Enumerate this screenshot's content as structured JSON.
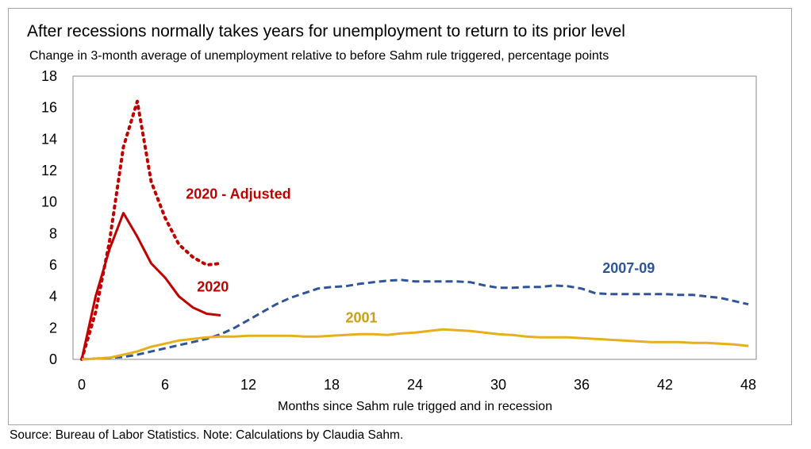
{
  "title": "After recessions normally takes years for unemployment to return to its prior level",
  "subtitle": "Change in 3-month average of unemployment relative to before Sahm rule triggered, percentage points",
  "source": "Source: Bureau of Labor Statistics. Note: Calculations by Claudia Sahm.",
  "chart_data": {
    "type": "line",
    "title": "After recessions normally takes years for unemployment to return to its prior level",
    "subtitle": "Change in 3-month average of unemployment relative to before Sahm rule triggered, percentage points",
    "xlabel": "Months since Sahm rule trigged and in recession",
    "ylabel": "",
    "xlim": [
      0,
      48
    ],
    "ylim": [
      0,
      18
    ],
    "xticks": [
      0,
      6,
      12,
      18,
      24,
      30,
      36,
      42,
      48
    ],
    "yticks": [
      0,
      2,
      4,
      6,
      8,
      10,
      12,
      14,
      16,
      18
    ],
    "grid": false,
    "legend": "none (direct labels)",
    "series": [
      {
        "name": "2020 - Adjusted",
        "color": "#c00000",
        "style": "dotted",
        "x": [
          0,
          1,
          2,
          3,
          4,
          5,
          6,
          7,
          8,
          9,
          10
        ],
        "y": [
          0,
          3.0,
          7.5,
          13.5,
          16.4,
          11.3,
          9.0,
          7.3,
          6.5,
          6.0,
          6.1
        ]
      },
      {
        "name": "2020",
        "color": "#c00000",
        "style": "solid",
        "x": [
          0,
          1,
          2,
          3,
          4,
          5,
          6,
          7,
          8,
          9,
          10
        ],
        "y": [
          0,
          4.0,
          7.0,
          9.3,
          7.8,
          6.1,
          5.2,
          4.0,
          3.3,
          2.9,
          2.8
        ]
      },
      {
        "name": "2007-09",
        "color": "#2f5597",
        "style": "dashed",
        "x": [
          0,
          1,
          2,
          3,
          4,
          5,
          6,
          7,
          8,
          9,
          10,
          11,
          12,
          13,
          14,
          15,
          16,
          17,
          18,
          19,
          20,
          21,
          22,
          23,
          24,
          25,
          26,
          27,
          28,
          29,
          30,
          31,
          32,
          33,
          34,
          35,
          36,
          37,
          38,
          39,
          40,
          41,
          42,
          43,
          44,
          45,
          46,
          47,
          48
        ],
        "y": [
          0,
          0.05,
          0.1,
          0.15,
          0.3,
          0.5,
          0.7,
          0.9,
          1.1,
          1.3,
          1.6,
          2.0,
          2.5,
          3.0,
          3.5,
          3.9,
          4.2,
          4.5,
          4.6,
          4.65,
          4.8,
          4.9,
          5.0,
          5.05,
          4.95,
          4.95,
          4.95,
          4.95,
          4.9,
          4.7,
          4.55,
          4.55,
          4.6,
          4.6,
          4.7,
          4.65,
          4.5,
          4.2,
          4.15,
          4.15,
          4.15,
          4.15,
          4.15,
          4.1,
          4.1,
          4.0,
          3.9,
          3.7,
          3.5
        ]
      },
      {
        "name": "2001",
        "color": "#e6b01c",
        "style": "solid",
        "x": [
          0,
          1,
          2,
          3,
          4,
          5,
          6,
          7,
          8,
          9,
          10,
          11,
          12,
          13,
          14,
          15,
          16,
          17,
          18,
          19,
          20,
          21,
          22,
          23,
          24,
          25,
          26,
          27,
          28,
          29,
          30,
          31,
          32,
          33,
          34,
          35,
          36,
          37,
          38,
          39,
          40,
          41,
          42,
          43,
          44,
          45,
          46,
          47,
          48
        ],
        "y": [
          0,
          0.05,
          0.1,
          0.3,
          0.5,
          0.8,
          1.0,
          1.2,
          1.3,
          1.4,
          1.45,
          1.45,
          1.5,
          1.5,
          1.5,
          1.5,
          1.45,
          1.45,
          1.5,
          1.55,
          1.6,
          1.6,
          1.55,
          1.65,
          1.7,
          1.8,
          1.9,
          1.85,
          1.8,
          1.7,
          1.6,
          1.55,
          1.45,
          1.4,
          1.4,
          1.4,
          1.35,
          1.3,
          1.25,
          1.2,
          1.15,
          1.1,
          1.1,
          1.1,
          1.05,
          1.05,
          1.0,
          0.95,
          0.85
        ]
      }
    ],
    "annotations": [
      {
        "text": "2020 - Adjusted",
        "color": "#c00000",
        "at": [
          7.5,
          10.2
        ]
      },
      {
        "text": "2020",
        "color": "#c00000",
        "at": [
          8.3,
          4.3
        ]
      },
      {
        "text": "2007-09",
        "color": "#2f5597",
        "at": [
          37.5,
          5.5
        ]
      },
      {
        "text": "2001",
        "color": "#c8a018",
        "at": [
          19.0,
          2.35
        ]
      }
    ]
  }
}
